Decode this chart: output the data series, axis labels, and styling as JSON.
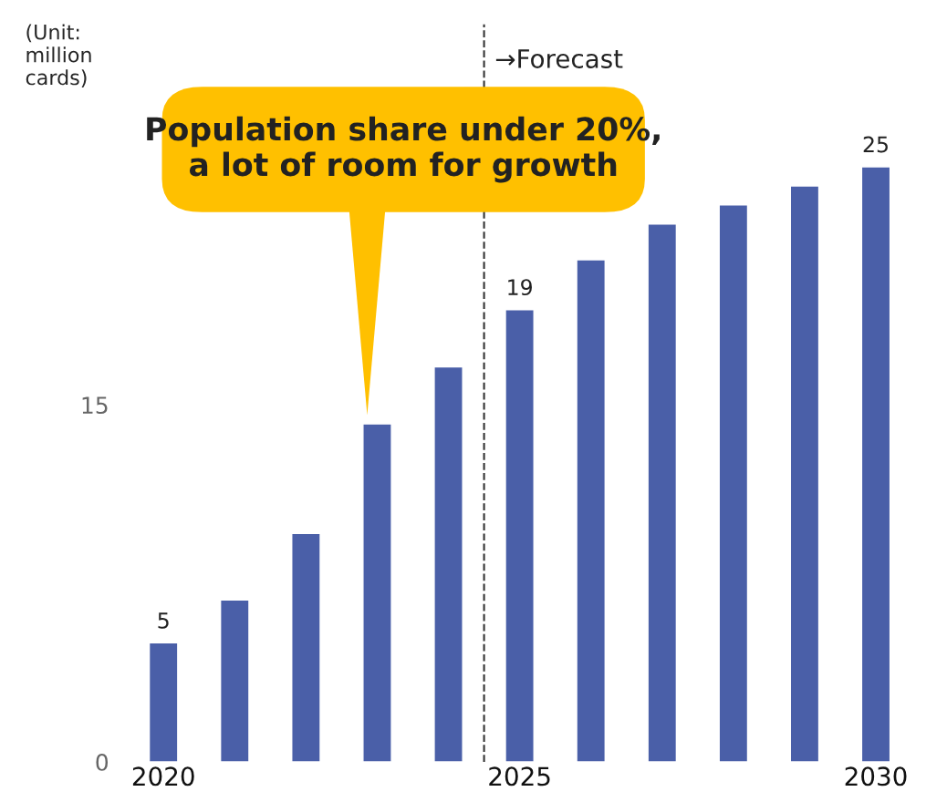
{
  "chart_data": {
    "type": "bar",
    "ylabel": "(Unit:\nmillion\ncards)",
    "categories": [
      "2020",
      null,
      null,
      null,
      null,
      "2025",
      null,
      null,
      null,
      null,
      "2030"
    ],
    "values": [
      5,
      6.8,
      9.6,
      14.2,
      16.6,
      19,
      21.1,
      22.6,
      23.4,
      24.2,
      25
    ],
    "value_labels": [
      "5",
      null,
      null,
      null,
      null,
      "19",
      null,
      null,
      null,
      null,
      "25"
    ],
    "color": "#4a5fa8",
    "ylim": [
      0,
      31
    ],
    "yticks": [
      0,
      15
    ],
    "annotations": [
      "Population share under 20%, a lot of room for growth",
      "→Forecast"
    ],
    "grid": false
  }
}
